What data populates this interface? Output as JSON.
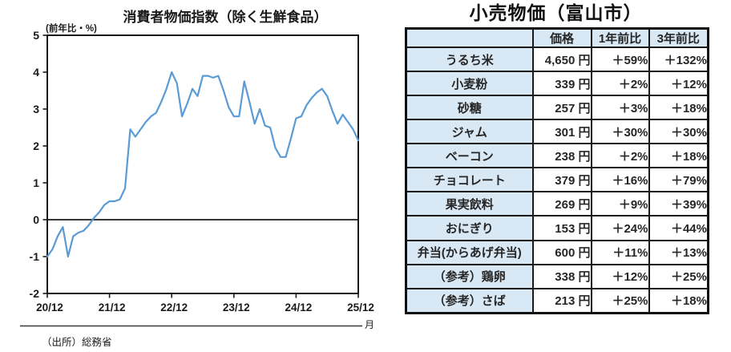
{
  "chart_data": [
    {
      "type": "line",
      "title": "消費者物価指数（除く生鮮食品）",
      "y_unit_label": "(前年比・%)",
      "x_unit_label": "月",
      "source": "（出所）総務省",
      "x_tick_labels": [
        "20/12",
        "21/12",
        "22/12",
        "23/12",
        "24/12",
        "25/12"
      ],
      "x_months_per_tick": 12,
      "series_start": "2020-12",
      "series_interval": "monthly",
      "ylim": [
        -2,
        5
      ],
      "y_ticks": [
        5,
        4,
        3,
        2,
        1,
        0,
        -1,
        -2
      ],
      "line_color": "#5b9bd5",
      "values": [
        -1.0,
        -0.8,
        -0.45,
        -0.2,
        -1.0,
        -0.45,
        -0.35,
        -0.3,
        -0.15,
        0.05,
        0.2,
        0.4,
        0.5,
        0.5,
        0.55,
        0.85,
        2.45,
        2.25,
        2.45,
        2.65,
        2.8,
        2.9,
        3.2,
        3.55,
        4.0,
        3.7,
        2.8,
        3.15,
        3.55,
        3.35,
        3.9,
        3.9,
        3.85,
        3.9,
        3.5,
        3.05,
        2.8,
        2.8,
        3.75,
        3.2,
        2.6,
        3.0,
        2.55,
        2.5,
        1.95,
        1.7,
        1.7,
        2.2,
        2.75,
        2.8,
        3.1,
        3.3,
        3.45,
        3.55,
        3.35,
        2.95,
        2.6,
        2.85,
        2.65,
        2.45,
        2.15
      ]
    },
    {
      "type": "table",
      "title": "小売物価（富山市）",
      "columns": [
        "",
        "価格",
        "1年前比",
        "3年前比"
      ],
      "rows": [
        {
          "item": "うるち米",
          "price": "4,650 円",
          "yoy1": "＋59%",
          "yoy3": "＋132%"
        },
        {
          "item": "小麦粉",
          "price": "339 円",
          "yoy1": "＋2%",
          "yoy3": "＋12%"
        },
        {
          "item": "砂糖",
          "price": "257 円",
          "yoy1": "＋3%",
          "yoy3": "＋18%"
        },
        {
          "item": "ジャム",
          "price": "301 円",
          "yoy1": "＋30%",
          "yoy3": "＋30%"
        },
        {
          "item": "ベーコン",
          "price": "238 円",
          "yoy1": "＋2%",
          "yoy3": "＋18%"
        },
        {
          "item": "チョコレート",
          "price": "379 円",
          "yoy1": "＋16%",
          "yoy3": "＋79%"
        },
        {
          "item": "果実飲料",
          "price": "269 円",
          "yoy1": "＋9%",
          "yoy3": "＋39%"
        },
        {
          "item": "おにぎり",
          "price": "153 円",
          "yoy1": "＋24%",
          "yoy3": "＋44%"
        },
        {
          "item": "弁当(からあげ弁当)",
          "price": "600 円",
          "yoy1": "＋11%",
          "yoy3": "＋13%"
        },
        {
          "item": "（参考）鶏卵",
          "price": "338 円",
          "yoy1": "＋12%",
          "yoy3": "＋25%"
        },
        {
          "item": "（参考）さば",
          "price": "213 円",
          "yoy1": "＋25%",
          "yoy3": "＋18%"
        }
      ]
    }
  ]
}
